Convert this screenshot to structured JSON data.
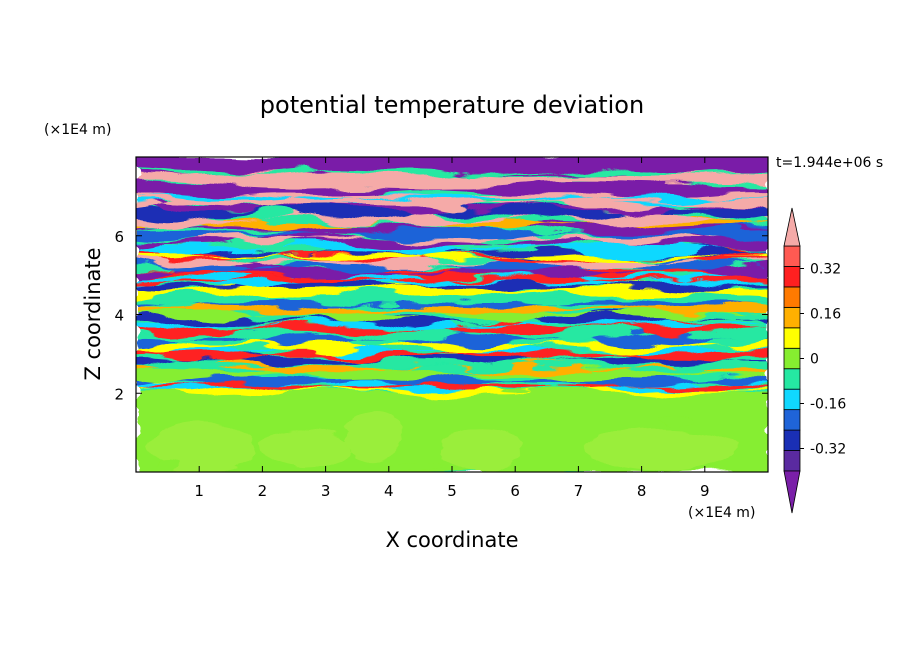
{
  "chart_data": {
    "type": "heatmap",
    "title": "potential temperature deviation",
    "xlabel": "X coordinate",
    "ylabel": "Z coordinate",
    "x_unit": "(×1E4 m)",
    "y_unit": "(×1E4 m)",
    "time_label": "t=1.944e+06 s",
    "xlim": [
      0,
      10
    ],
    "ylim": [
      0,
      8
    ],
    "x_ticks": [
      1,
      2,
      3,
      4,
      5,
      6,
      7,
      8,
      9
    ],
    "y_ticks": [
      2,
      4,
      6
    ],
    "colorbar": {
      "levels": [
        -0.48,
        -0.4,
        -0.32,
        -0.24,
        -0.16,
        -0.08,
        0,
        0.08,
        0.16,
        0.24,
        0.32,
        0.4,
        0.48
      ],
      "colors": [
        "#7a1fa8",
        "#5a2aa0",
        "#1a2fb5",
        "#1f64d8",
        "#10d8ff",
        "#25e8a2",
        "#86ee30",
        "#ffff00",
        "#ffb000",
        "#ff7a00",
        "#ff2020",
        "#ff5a52",
        "#f5aaa8"
      ],
      "tick_labels": [
        "0.32",
        "0.16",
        "0",
        "-0.16",
        "-0.32"
      ],
      "tick_values": [
        0.32,
        0.16,
        0,
        -0.16,
        -0.32
      ],
      "extend": "both"
    },
    "layers": [
      {
        "z": [
          7.6,
          8.0
        ],
        "dominant": "purple"
      },
      {
        "z": [
          6.9,
          7.6
        ],
        "dominant": "pink / purple bands"
      },
      {
        "z": [
          5.0,
          6.9
        ],
        "dominant": "alternating pink, purple, blue, red streaks"
      },
      {
        "z": [
          2.0,
          5.0
        ],
        "dominant": "turbulent mix of blue, cyan, green, yellow, red"
      },
      {
        "z": [
          0.0,
          2.0
        ],
        "dominant": "green to light green (near 0)"
      }
    ]
  }
}
